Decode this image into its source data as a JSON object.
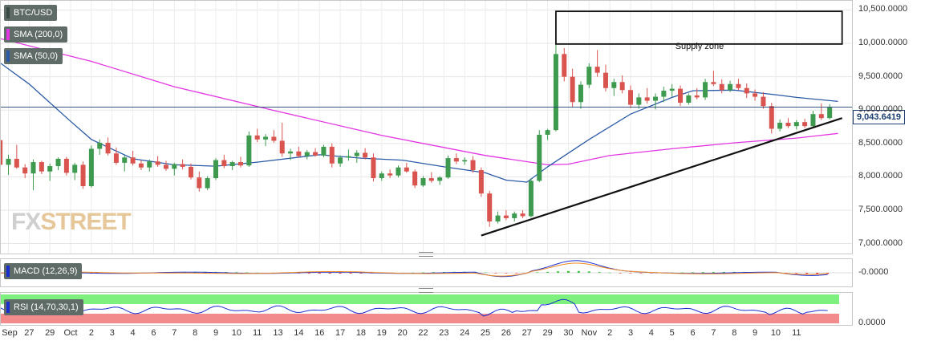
{
  "chart_data": {
    "type": "candlestick",
    "instrument": "BTC/USD",
    "indicators": [
      {
        "name": "SMA (200,0)",
        "color": "#e335e3"
      },
      {
        "name": "SMA (50,0)",
        "color": "#2b5aa8"
      },
      {
        "name": "MACD (12,26,9)",
        "color": "#1b2fd0"
      },
      {
        "name": "RSI (14,70,30,1)",
        "color": "#1b2fd0"
      }
    ],
    "ylim": [
      6850,
      10650
    ],
    "yticks": [
      "10,500.0000",
      "10,000.0000",
      "9,500.0000",
      "9,000.0000",
      "8,500.0000",
      "8,000.0000",
      "7,500.0000",
      "7,000.0000"
    ],
    "ytick_values": [
      10500,
      10000,
      9500,
      9000,
      8500,
      8000,
      7500,
      7000
    ],
    "current_price": "9,043.6419",
    "current_price_value": 9043.64,
    "macd_tick": "-0.0000",
    "rsi_tick": "0.0000",
    "xticks": [
      "Sep",
      "27",
      "29",
      "Oct",
      "2",
      "3",
      "4",
      "6",
      "7",
      "8",
      "9",
      "10",
      "11",
      "13",
      "14",
      "16",
      "17",
      "18",
      "19",
      "20",
      "22",
      "23",
      "24",
      "25",
      "26",
      "27",
      "29",
      "30",
      "Nov",
      "2",
      "3",
      "4",
      "5",
      "6",
      "7",
      "8",
      "9",
      "10",
      "11"
    ],
    "annotations": [
      {
        "type": "rect",
        "label": "Supply zone",
        "x0_index": 26.4,
        "x1_index": 40.2,
        "y0": 9990,
        "y1": 10480
      },
      {
        "type": "trendline",
        "x0_index": 22.8,
        "y0": 7120,
        "x1_index": 40.2,
        "y1": 8880
      }
    ],
    "sma200": [
      [
        -0.5,
        10080
      ],
      [
        4,
        9730
      ],
      [
        8,
        9350
      ],
      [
        13,
        8980
      ],
      [
        18,
        8620
      ],
      [
        23,
        8320
      ],
      [
        26,
        8180
      ],
      [
        27,
        8190
      ],
      [
        29,
        8320
      ],
      [
        32,
        8420
      ],
      [
        35,
        8510
      ],
      [
        38,
        8580
      ],
      [
        40,
        8650
      ]
    ],
    "sma50": [
      [
        -0.5,
        9730
      ],
      [
        1,
        9390
      ],
      [
        3,
        8830
      ],
      [
        4,
        8560
      ],
      [
        6,
        8270
      ],
      [
        8,
        8180
      ],
      [
        10,
        8160
      ],
      [
        12,
        8220
      ],
      [
        15,
        8330
      ],
      [
        17,
        8280
      ],
      [
        19,
        8250
      ],
      [
        21,
        8150
      ],
      [
        23,
        8060
      ],
      [
        24,
        7950
      ],
      [
        25,
        7920
      ],
      [
        26,
        8150
      ],
      [
        28,
        8560
      ],
      [
        30,
        8940
      ],
      [
        32,
        9190
      ],
      [
        33,
        9290
      ],
      [
        35,
        9300
      ],
      [
        37,
        9230
      ],
      [
        38,
        9190
      ],
      [
        40,
        9130
      ]
    ],
    "candles": [
      [
        -0.4,
        8550,
        8560,
        8150,
        8180
      ],
      [
        0,
        8180,
        8330,
        8030,
        8270
      ],
      [
        0.4,
        8270,
        8480,
        8120,
        8140
      ],
      [
        0.8,
        8140,
        8190,
        7980,
        8050
      ],
      [
        1.2,
        8050,
        8260,
        7800,
        8220
      ],
      [
        1.6,
        8220,
        8240,
        8040,
        8080
      ],
      [
        2,
        8080,
        8200,
        7940,
        8160
      ],
      [
        2.4,
        8160,
        8290,
        8100,
        8270
      ],
      [
        2.8,
        8270,
        8300,
        8020,
        8060
      ],
      [
        3.2,
        8060,
        8210,
        7950,
        8180
      ],
      [
        3.6,
        8180,
        8230,
        7820,
        7860
      ],
      [
        4,
        7860,
        8470,
        7840,
        8420
      ],
      [
        4.4,
        8420,
        8560,
        8330,
        8510
      ],
      [
        4.8,
        8510,
        8590,
        8320,
        8350
      ],
      [
        5.2,
        8350,
        8440,
        8180,
        8210
      ],
      [
        5.6,
        8210,
        8320,
        8080,
        8290
      ],
      [
        6,
        8290,
        8390,
        8170,
        8200
      ],
      [
        6.4,
        8200,
        8250,
        8100,
        8140
      ],
      [
        6.8,
        8140,
        8260,
        8080,
        8230
      ],
      [
        7.2,
        8230,
        8310,
        8150,
        8180
      ],
      [
        7.6,
        8180,
        8240,
        8090,
        8120
      ],
      [
        8,
        8120,
        8210,
        8020,
        8190
      ],
      [
        8.4,
        8190,
        8260,
        8110,
        8150
      ],
      [
        8.8,
        8150,
        8200,
        7960,
        7990
      ],
      [
        9.2,
        7990,
        8080,
        7780,
        7830
      ],
      [
        9.6,
        7830,
        8010,
        7800,
        7980
      ],
      [
        10,
        7980,
        8280,
        7950,
        8250
      ],
      [
        10.4,
        8250,
        8330,
        8130,
        8160
      ],
      [
        10.8,
        8160,
        8240,
        8100,
        8220
      ],
      [
        11.2,
        8220,
        8300,
        8140,
        8170
      ],
      [
        11.6,
        8170,
        8680,
        8150,
        8620
      ],
      [
        12,
        8620,
        8720,
        8520,
        8560
      ],
      [
        12.4,
        8560,
        8640,
        8460,
        8600
      ],
      [
        12.8,
        8600,
        8700,
        8510,
        8540
      ],
      [
        13.2,
        8540,
        8810,
        8300,
        8350
      ],
      [
        13.6,
        8350,
        8420,
        8250,
        8380
      ],
      [
        14,
        8380,
        8450,
        8290,
        8310
      ],
      [
        14.4,
        8310,
        8400,
        8260,
        8370
      ],
      [
        14.8,
        8370,
        8430,
        8300,
        8320
      ],
      [
        15.2,
        8320,
        8480,
        8290,
        8450
      ],
      [
        15.6,
        8450,
        8500,
        8140,
        8200
      ],
      [
        16,
        8200,
        8320,
        8150,
        8290
      ],
      [
        16.4,
        8290,
        8410,
        8240,
        8310
      ],
      [
        16.8,
        8310,
        8400,
        8210,
        8360
      ],
      [
        17.2,
        8360,
        8430,
        8260,
        8290
      ],
      [
        17.6,
        8290,
        8350,
        7930,
        7980
      ],
      [
        18,
        7980,
        8080,
        7940,
        8050
      ],
      [
        18.4,
        8050,
        8110,
        7980,
        8020
      ],
      [
        18.8,
        8020,
        8170,
        7990,
        8140
      ],
      [
        19.2,
        8140,
        8210,
        8060,
        8080
      ],
      [
        19.6,
        8080,
        8110,
        7830,
        7870
      ],
      [
        20,
        7870,
        8010,
        7850,
        7980
      ],
      [
        20.4,
        7980,
        8070,
        7910,
        7940
      ],
      [
        20.8,
        7940,
        8010,
        7880,
        7990
      ],
      [
        21.2,
        7990,
        8320,
        7970,
        8280
      ],
      [
        21.6,
        8280,
        8350,
        8190,
        8230
      ],
      [
        22,
        8230,
        8290,
        8180,
        8250
      ],
      [
        22.4,
        8250,
        8310,
        8060,
        8100
      ],
      [
        22.8,
        8100,
        8140,
        7700,
        7750
      ],
      [
        23.2,
        7750,
        7790,
        7250,
        7330
      ],
      [
        23.6,
        7330,
        7480,
        7300,
        7420
      ],
      [
        24,
        7420,
        7500,
        7350,
        7380
      ],
      [
        24.4,
        7380,
        7480,
        7330,
        7450
      ],
      [
        24.8,
        7450,
        7500,
        7380,
        7410
      ],
      [
        25.2,
        7410,
        7980,
        7390,
        7940
      ],
      [
        25.6,
        7940,
        8700,
        7920,
        8630
      ],
      [
        26,
        8630,
        8720,
        8550,
        8700
      ],
      [
        26.4,
        8700,
        10000,
        8680,
        9840
      ],
      [
        26.8,
        9840,
        9930,
        9430,
        9500
      ],
      [
        27.2,
        9500,
        9620,
        9050,
        9120
      ],
      [
        27.6,
        9120,
        9430,
        9020,
        9380
      ],
      [
        28,
        9380,
        9700,
        9330,
        9650
      ],
      [
        28.4,
        9650,
        9900,
        9500,
        9560
      ],
      [
        28.8,
        9560,
        9680,
        9280,
        9330
      ],
      [
        29.2,
        9330,
        9470,
        9210,
        9420
      ],
      [
        29.6,
        9420,
        9520,
        9250,
        9300
      ],
      [
        30,
        9300,
        9370,
        9030,
        9080
      ],
      [
        30.4,
        9080,
        9250,
        9020,
        9190
      ],
      [
        30.8,
        9190,
        9330,
        9100,
        9140
      ],
      [
        31.2,
        9140,
        9250,
        9010,
        9200
      ],
      [
        31.6,
        9200,
        9350,
        9120,
        9290
      ],
      [
        32,
        9290,
        9390,
        9200,
        9320
      ],
      [
        32.4,
        9320,
        9370,
        9060,
        9110
      ],
      [
        32.8,
        9110,
        9250,
        9080,
        9220
      ],
      [
        33.2,
        9220,
        9330,
        9160,
        9190
      ],
      [
        33.6,
        9190,
        9470,
        9150,
        9420
      ],
      [
        34,
        9420,
        9590,
        9360,
        9390
      ],
      [
        34.4,
        9390,
        9460,
        9250,
        9300
      ],
      [
        34.8,
        9300,
        9440,
        9270,
        9390
      ],
      [
        35.2,
        9390,
        9470,
        9300,
        9330
      ],
      [
        35.6,
        9330,
        9400,
        9180,
        9250
      ],
      [
        36,
        9250,
        9310,
        9140,
        9200
      ],
      [
        36.4,
        9200,
        9270,
        9020,
        9060
      ],
      [
        36.8,
        9060,
        9110,
        8650,
        8720
      ],
      [
        37.2,
        8720,
        8860,
        8680,
        8810
      ],
      [
        37.6,
        8810,
        8880,
        8730,
        8760
      ],
      [
        38,
        8760,
        8850,
        8710,
        8820
      ],
      [
        38.4,
        8820,
        8870,
        8730,
        8760
      ],
      [
        38.8,
        8760,
        8990,
        8740,
        8940
      ],
      [
        39.2,
        8940,
        9100,
        8850,
        8880
      ],
      [
        39.6,
        8880,
        9090,
        8860,
        9043
      ]
    ]
  }
}
